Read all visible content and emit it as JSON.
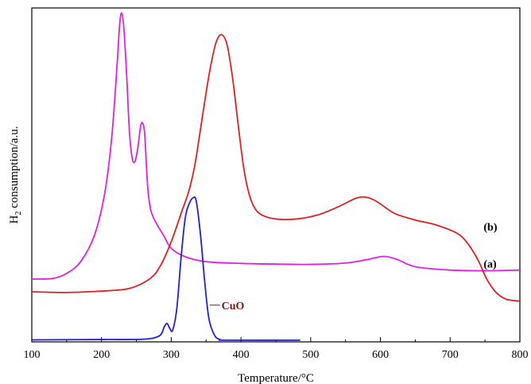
{
  "chart_data": {
    "type": "line",
    "title": "",
    "xlabel": "Temperature/°C",
    "ylabel_main": "H",
    "ylabel_sub": "2",
    "ylabel_rest": " consumption/a.u.",
    "xlim": [
      100,
      800
    ],
    "ylim": [
      0,
      100
    ],
    "x_ticks": [
      100,
      200,
      300,
      400,
      500,
      600,
      700,
      800
    ],
    "x_tick_labels": [
      "100",
      "200",
      "300",
      "400",
      "500",
      "600",
      "700",
      "800"
    ],
    "y_tick_labels_shown": false,
    "grid": false,
    "series": [
      {
        "name": "(a)",
        "color": "#e020e0",
        "points": [
          [
            100,
            18.8
          ],
          [
            130,
            19.0
          ],
          [
            150,
            20.5
          ],
          [
            170,
            24.0
          ],
          [
            190,
            32.0
          ],
          [
            205,
            45.0
          ],
          [
            215,
            62.0
          ],
          [
            222,
            82.0
          ],
          [
            226,
            95.0
          ],
          [
            229,
            98.5
          ],
          [
            232,
            94.0
          ],
          [
            236,
            80.0
          ],
          [
            240,
            63.0
          ],
          [
            244,
            55.0
          ],
          [
            248,
            54.0
          ],
          [
            252,
            58.0
          ],
          [
            256,
            64.5
          ],
          [
            259,
            65.5
          ],
          [
            262,
            62.0
          ],
          [
            266,
            47.0
          ],
          [
            270,
            40.0
          ],
          [
            275,
            37.0
          ],
          [
            280,
            35.0
          ],
          [
            290,
            31.5
          ],
          [
            300,
            28.0
          ],
          [
            320,
            25.5
          ],
          [
            350,
            24.0
          ],
          [
            400,
            23.5
          ],
          [
            450,
            23.3
          ],
          [
            500,
            23.2
          ],
          [
            550,
            23.6
          ],
          [
            580,
            24.6
          ],
          [
            605,
            25.6
          ],
          [
            625,
            24.6
          ],
          [
            650,
            22.5
          ],
          [
            700,
            21.5
          ],
          [
            750,
            21.3
          ],
          [
            800,
            21.5
          ]
        ]
      },
      {
        "name": "(b)",
        "color": "#e02020",
        "points": [
          [
            100,
            15.0
          ],
          [
            150,
            14.8
          ],
          [
            200,
            15.2
          ],
          [
            240,
            16.0
          ],
          [
            270,
            19.0
          ],
          [
            285,
            23.0
          ],
          [
            300,
            30.0
          ],
          [
            315,
            39.0
          ],
          [
            325,
            45.0
          ],
          [
            333,
            52.0
          ],
          [
            340,
            61.0
          ],
          [
            348,
            72.0
          ],
          [
            356,
            82.0
          ],
          [
            364,
            89.5
          ],
          [
            372,
            92.0
          ],
          [
            380,
            89.0
          ],
          [
            388,
            79.0
          ],
          [
            396,
            65.0
          ],
          [
            404,
            52.0
          ],
          [
            412,
            44.0
          ],
          [
            420,
            40.0
          ],
          [
            430,
            38.0
          ],
          [
            450,
            36.8
          ],
          [
            480,
            36.8
          ],
          [
            510,
            38.0
          ],
          [
            540,
            40.5
          ],
          [
            565,
            43.0
          ],
          [
            580,
            43.3
          ],
          [
            595,
            42.0
          ],
          [
            620,
            38.5
          ],
          [
            650,
            36.5
          ],
          [
            680,
            35.0
          ],
          [
            710,
            32.5
          ],
          [
            725,
            29.5
          ],
          [
            740,
            24.5
          ],
          [
            752,
            19.0
          ],
          [
            765,
            15.0
          ],
          [
            780,
            12.8
          ],
          [
            800,
            12.2
          ]
        ]
      },
      {
        "name": "CuO",
        "color": "#2020dd",
        "points": [
          [
            100,
            0.6
          ],
          [
            200,
            0.7
          ],
          [
            260,
            0.8
          ],
          [
            283,
            1.8
          ],
          [
            290,
            4.5
          ],
          [
            294,
            5.5
          ],
          [
            298,
            4.0
          ],
          [
            302,
            3.5
          ],
          [
            308,
            10.0
          ],
          [
            314,
            25.0
          ],
          [
            320,
            37.0
          ],
          [
            326,
            41.5
          ],
          [
            332,
            43.2
          ],
          [
            336,
            42.0
          ],
          [
            342,
            32.0
          ],
          [
            348,
            18.0
          ],
          [
            354,
            7.0
          ],
          [
            362,
            2.0
          ],
          [
            370,
            0.7
          ],
          [
            380,
            0.5
          ],
          [
            485,
            0.5
          ]
        ]
      }
    ],
    "annotations": [
      {
        "text": "(b)",
        "x": 748,
        "y": 34.5,
        "color": "#000000"
      },
      {
        "text": "(a)",
        "x": 748,
        "y": 23.5,
        "color": "#000000"
      },
      {
        "text": "CuO",
        "x": 372,
        "y": 11.0,
        "color": "#8b1010",
        "leader_from": 355,
        "leader_to": 370
      }
    ]
  }
}
